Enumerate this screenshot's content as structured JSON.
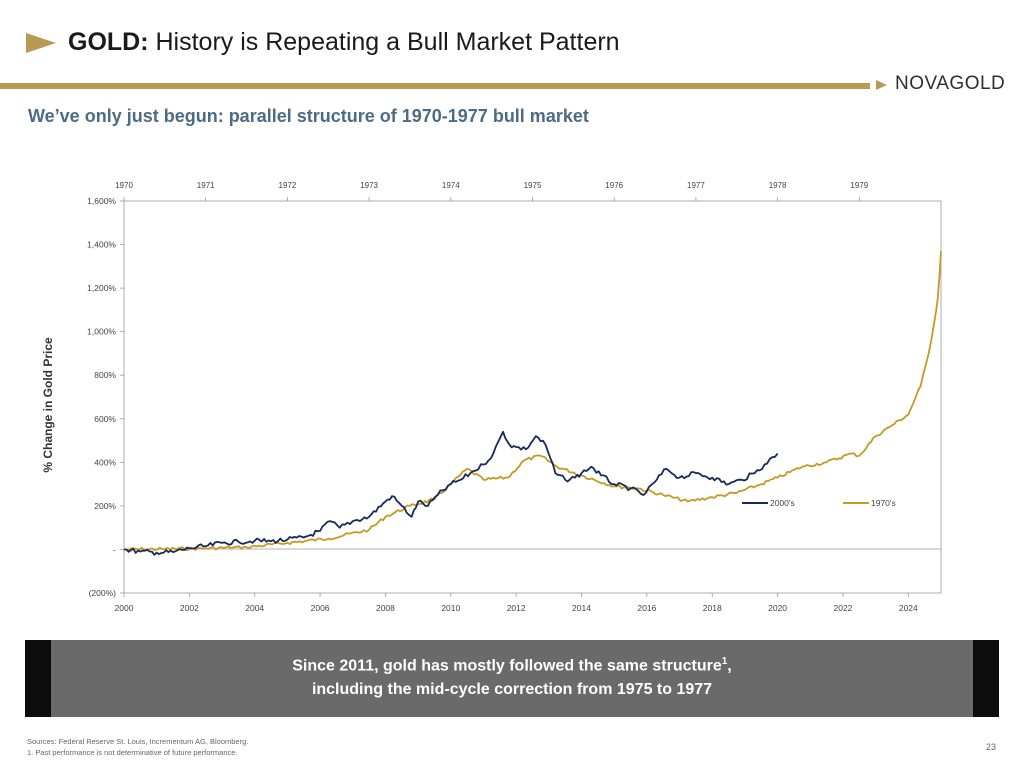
{
  "slide": {
    "title_bold": "GOLD:",
    "title_rest": " History is Repeating a Bull Market Pattern",
    "logo": "NOVAGOLD",
    "subtitle": "We’ve only just begun: parallel structure of 1970-1977 bull market",
    "callout_line1_pre": "Since 2011, gold has mostly followed the same structure",
    "callout_line1_sup": "1",
    "callout_line1_post": ",",
    "callout_line2": "including the mid-cycle correction from 1975 to 1977",
    "source_line1": "Sources: Federal Reserve St. Louis, Incrementum AG, Bloomberg.",
    "source_line2": "1. Past performance is not determinative of future performance.",
    "page_number": "23",
    "colors": {
      "accent_gold": "#b99a55",
      "subtitle_blue": "#4e6b86",
      "series_2000s": "#172a5c",
      "series_1970s": "#c49a22"
    }
  },
  "chart_data": {
    "type": "line",
    "ylabel": "% Change in Gold Price",
    "ylim": [
      -200,
      1600
    ],
    "yticks": [
      -200,
      0,
      200,
      400,
      600,
      800,
      1000,
      1200,
      1400,
      1600
    ],
    "ytick_labels": [
      "(200%)",
      "-",
      "200%",
      "400%",
      "600%",
      "800%",
      "1,000%",
      "1,200%",
      "1,400%",
      "1,600%"
    ],
    "bottom_axis": {
      "range": [
        2000,
        2025
      ],
      "ticks": [
        2000,
        2002,
        2004,
        2006,
        2008,
        2010,
        2012,
        2014,
        2016,
        2018,
        2020,
        2022,
        2024
      ]
    },
    "top_axis": {
      "range": [
        1970,
        1980
      ],
      "ticks": [
        1970,
        1971,
        1972,
        1973,
        1974,
        1975,
        1976,
        1977,
        1978,
        1979
      ]
    },
    "legend_position": "right-middle",
    "series": [
      {
        "name": "2000's",
        "axis": "bottom",
        "color": "#172a5c",
        "x": [
          2000,
          2000.5,
          2001,
          2001.5,
          2002,
          2002.5,
          2003,
          2003.5,
          2004,
          2004.5,
          2005,
          2005.5,
          2006,
          2006.3,
          2006.6,
          2007,
          2007.5,
          2008,
          2008.2,
          2008.5,
          2008.8,
          2009,
          2009.3,
          2009.6,
          2010,
          2010.3,
          2010.6,
          2011,
          2011.3,
          2011.6,
          2011.8,
          2012,
          2012.3,
          2012.6,
          2012.9,
          2013.2,
          2013.5,
          2013.8,
          2014,
          2014.3,
          2014.6,
          2015,
          2015.5,
          2015.9,
          2016.3,
          2016.6,
          2017,
          2017.5,
          2018,
          2018.5,
          2018.9,
          2019.3,
          2019.6,
          2020
        ],
        "y": [
          0,
          -10,
          -15,
          -12,
          5,
          15,
          30,
          35,
          40,
          38,
          45,
          55,
          85,
          130,
          100,
          130,
          150,
          220,
          245,
          200,
          150,
          220,
          200,
          250,
          300,
          320,
          350,
          390,
          440,
          540,
          480,
          470,
          460,
          520,
          480,
          350,
          320,
          330,
          350,
          380,
          340,
          300,
          280,
          250,
          320,
          370,
          330,
          350,
          330,
          300,
          320,
          350,
          390,
          440
        ]
      },
      {
        "name": "1970's",
        "axis": "top",
        "color": "#c49a22",
        "x": [
          1970,
          1970.5,
          1971,
          1971.5,
          1972,
          1972.5,
          1973,
          1973.2,
          1973.5,
          1973.8,
          1974,
          1974.2,
          1974.4,
          1974.7,
          1974.9,
          1975.1,
          1975.3,
          1975.6,
          1976,
          1976.3,
          1976.6,
          1976.9,
          1977.2,
          1977.5,
          1977.8,
          1978,
          1978.3,
          1978.6,
          1978.9,
          1979,
          1979.2,
          1979.4,
          1979.6,
          1979.75,
          1979.85,
          1979.92,
          1979.96,
          1980
        ],
        "y": [
          0,
          2,
          5,
          10,
          30,
          50,
          90,
          150,
          200,
          230,
          300,
          370,
          320,
          330,
          410,
          430,
          380,
          340,
          290,
          280,
          250,
          220,
          240,
          260,
          300,
          330,
          380,
          400,
          440,
          430,
          520,
          570,
          620,
          750,
          900,
          1050,
          1150,
          1370
        ]
      }
    ]
  }
}
